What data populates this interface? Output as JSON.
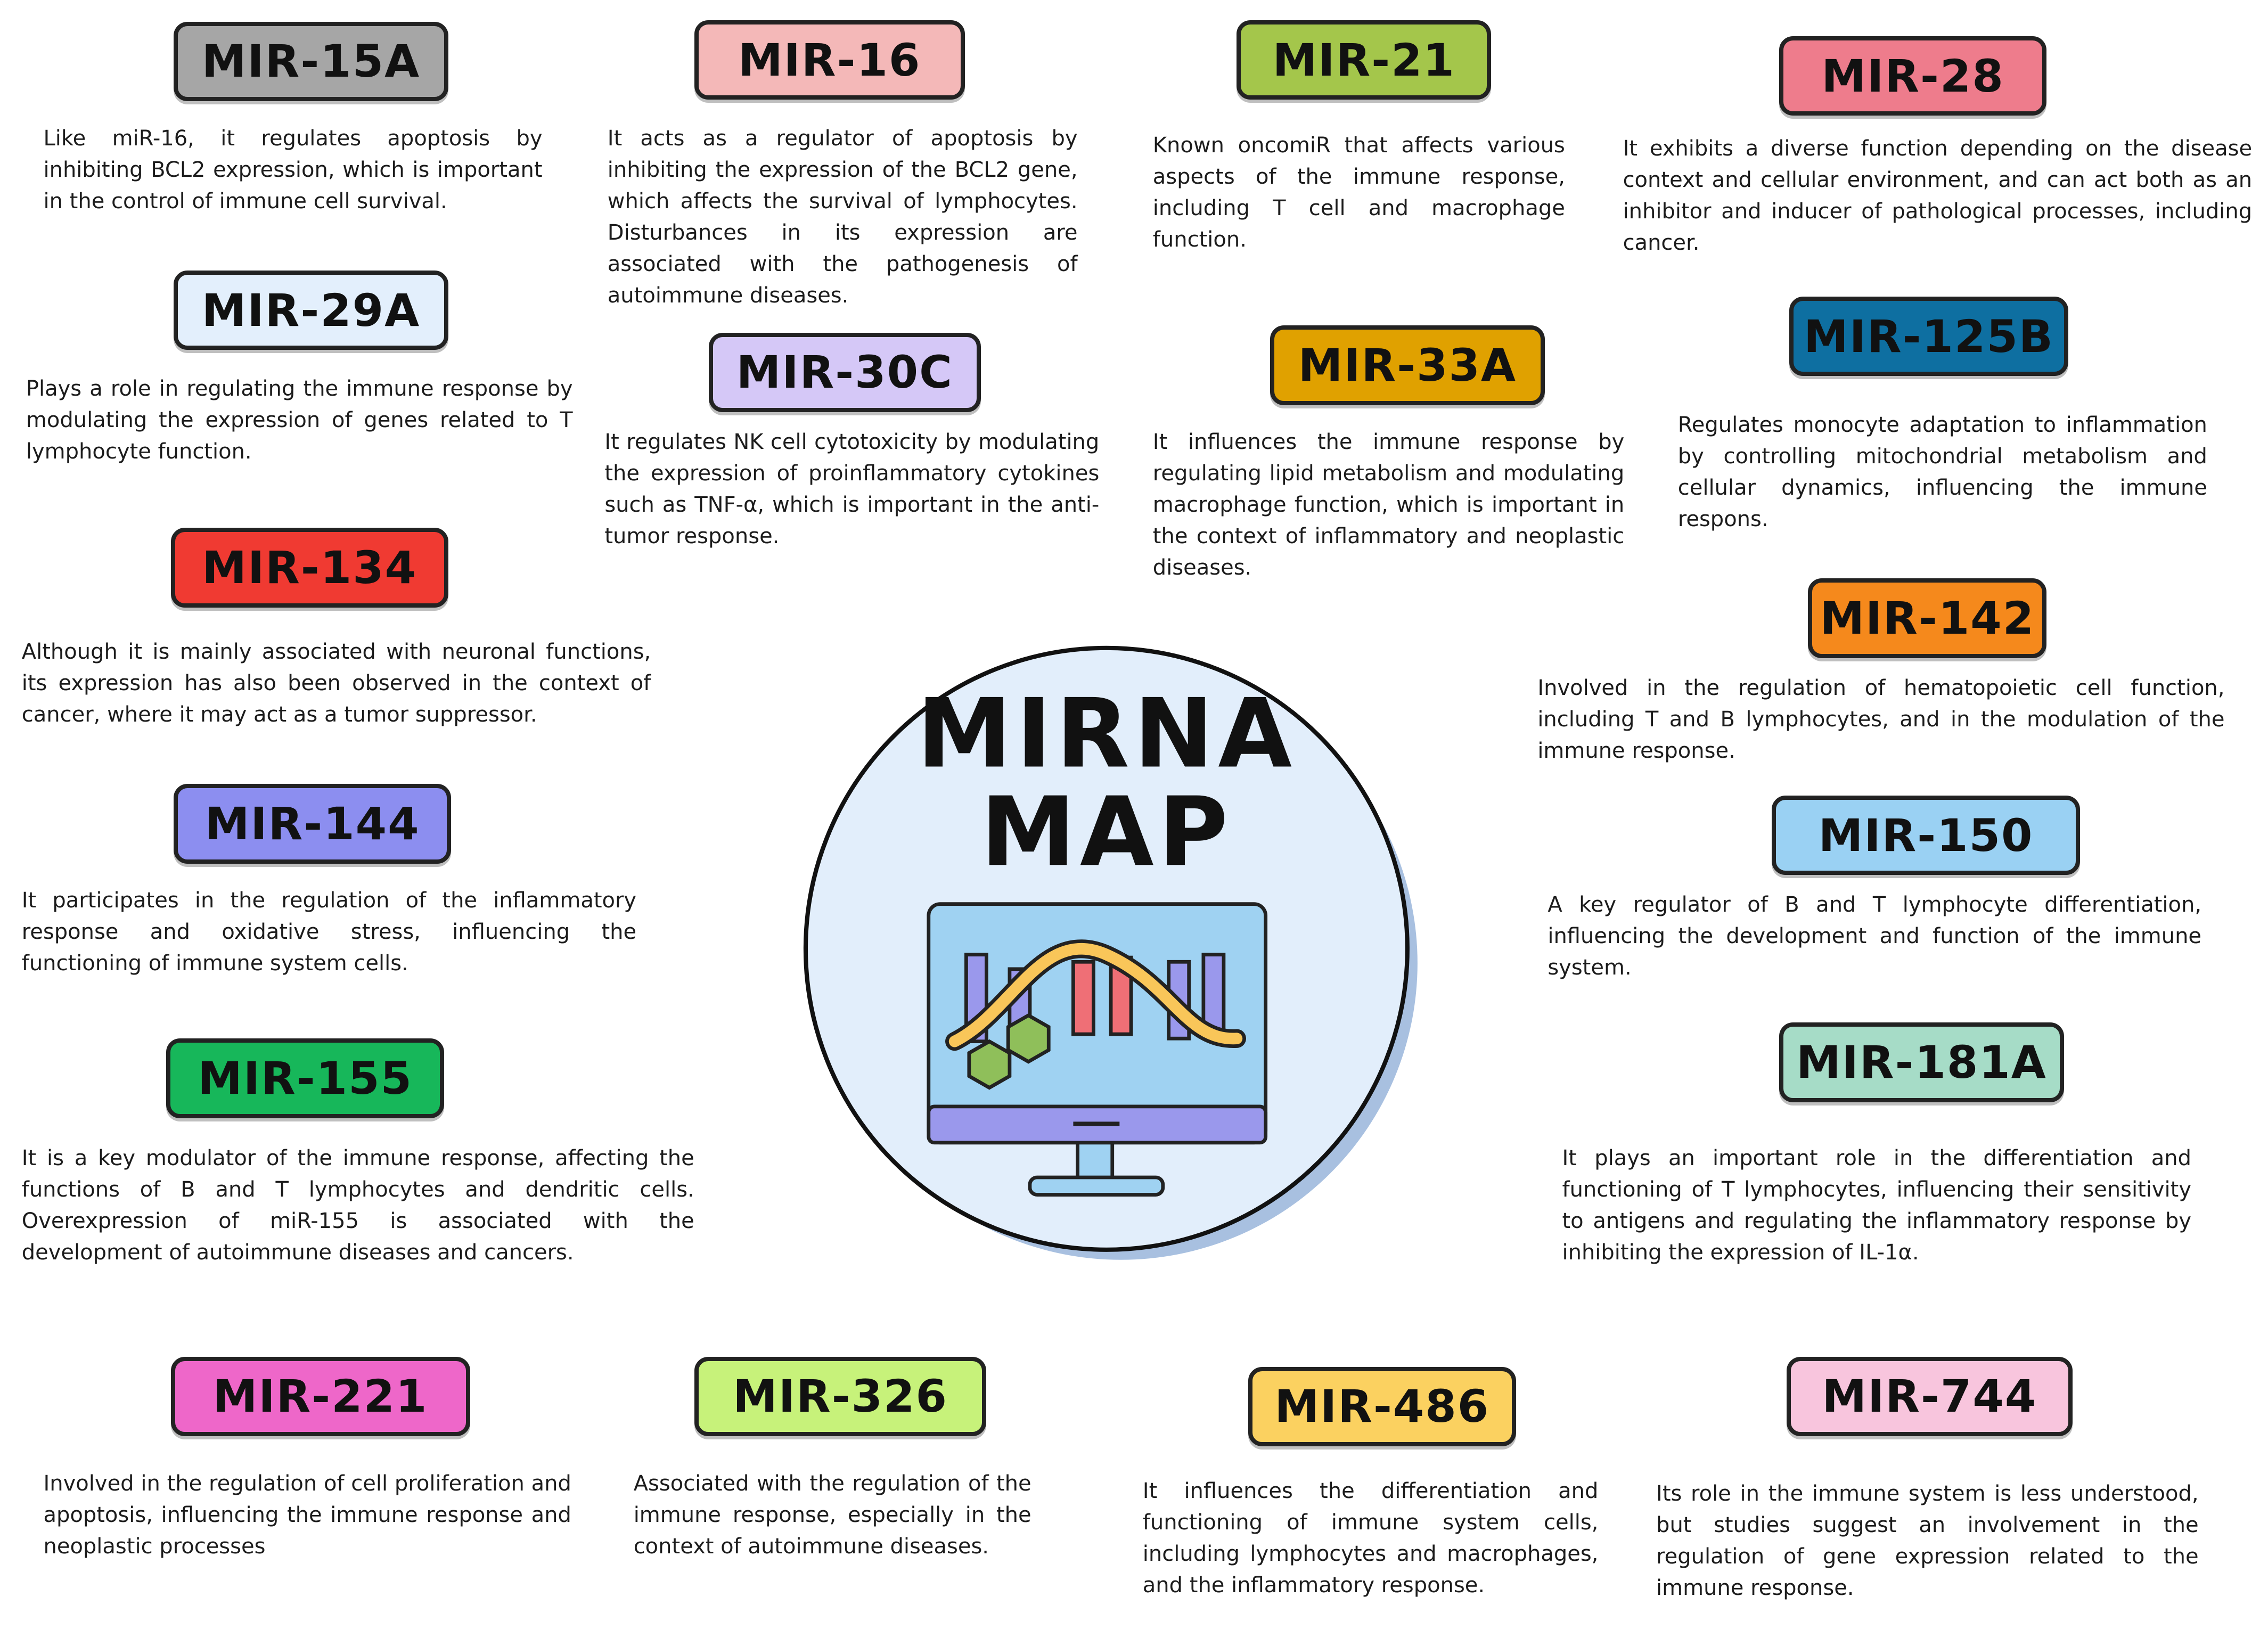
{
  "title": [
    "MIRNA",
    "MAP"
  ],
  "items": [
    {
      "label": "MIR-15A",
      "color": "#a6a6a6",
      "description": "Like miR-16, it regulates apoptosis by inhibiting BCL2 expression, which is important in the control of immune cell survival."
    },
    {
      "label": "MIR-16",
      "color": "#f4b8b8",
      "description": "It acts as a regulator of apoptosis by inhibiting the expression of the BCL2 gene, which affects the survival of lymphocytes. Disturbances in its expression are associated with the pathogenesis of autoimmune diseases."
    },
    {
      "label": "MIR-21",
      "color": "#a4c64b",
      "description": "Known oncomiR that affects various aspects of the immune response, including T cell and macrophage function."
    },
    {
      "label": "MIR-28",
      "color": "#ee7c8c",
      "description": "It exhibits a diverse function depending on the disease context and cellular environment, and can act both as an inhibitor and inducer of pathological processes, including cancer."
    },
    {
      "label": "MIR-29A",
      "color": "#e3effc",
      "description": "Plays a role in regulating the immune response by modulating the expression of genes related to T lymphocyte function."
    },
    {
      "label": "MIR-30C",
      "color": "#d5c8f7",
      "description": "It regulates NK cell cytotoxicity by modulating the expression of proinflammatory cytokines such as TNF-α, which is important in the anti-tumor response."
    },
    {
      "label": "MIR-33A",
      "color": "#e0a100",
      "description": "It influences the immune response by regulating lipid metabolism and modulating macrophage function, which is important in the context of inflammatory and neoplastic diseases."
    },
    {
      "label": "MIR-125B",
      "color": "#0e6fa1",
      "description": "Regulates monocyte adaptation to inflammation by controlling mitochondrial metabolism and cellular dynamics, influencing the immune respons."
    },
    {
      "label": "MIR-134",
      "color": "#f03a32",
      "description": "Although it is mainly associated with neuronal functions, its expression has also been observed in the context of cancer, where it may act as a tumor suppressor."
    },
    {
      "label": "MIR-142",
      "color": "#f5891c",
      "description": "Involved in the regulation of hematopoietic cell function, including T and B lymphocytes, and in the modulation of the immune response."
    },
    {
      "label": "MIR-144",
      "color": "#8c8ef0",
      "description": "It participates in the regulation of the inflammatory response and oxidative stress, influencing the functioning of immune system cells."
    },
    {
      "label": "MIR-150",
      "color": "#9ad1f3",
      "description": "A key regulator of B and T lymphocyte differentiation, influencing the development and function of the immune system."
    },
    {
      "label": "MIR-155",
      "color": "#17b75a",
      "description": "It is a key modulator of the immune response, affecting the functions of B and T lymphocytes and dendritic cells. Overexpression of miR-155 is associated with the development of autoimmune diseases and cancers."
    },
    {
      "label": "MIR-181A",
      "color": "#a6dcc7",
      "description": "It plays an important role in the differentiation and functioning of T lymphocytes, influencing their sensitivity to antigens and regulating the inflammatory response by inhibiting the expression of IL-1α."
    },
    {
      "label": "MIR-221",
      "color": "#ee67c9",
      "description": "Involved in the regulation of cell proliferation and apoptosis, influencing the immune response and neoplastic processes"
    },
    {
      "label": "MIR-326",
      "color": "#c7f27a",
      "description": "Associated with the regulation of the immune response, especially in the context of autoimmune diseases."
    },
    {
      "label": "MIR-486",
      "color": "#fbd160",
      "description": "It influences the differentiation and functioning of immune system cells, including lymphocytes and macrophages, and the inflammatory response."
    },
    {
      "label": "MIR-744",
      "color": "#f8c5dd",
      "description": "Its role in the immune system is less understood, but studies suggest an involvement in the regulation of gene expression related to the immune response."
    }
  ]
}
